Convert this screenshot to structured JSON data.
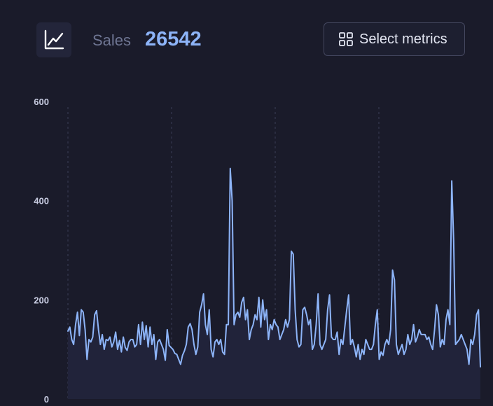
{
  "header": {
    "icon": "line-chart-icon",
    "metric_label": "Sales",
    "metric_value": "26542",
    "select_button": {
      "icon": "grid-icon",
      "label": "Select metrics"
    }
  },
  "colors": {
    "background": "#1a1b2a",
    "line": "#8db4f8",
    "area": "#21233a",
    "gridline": "#3a3d56",
    "accent": "#8db4f8"
  },
  "chart_data": {
    "type": "area",
    "title": "",
    "xlabel": "",
    "ylabel": "",
    "ylim": [
      0,
      600
    ],
    "y_ticks": [
      0,
      200,
      400,
      600
    ],
    "vertical_gridlines": 4,
    "legend": "none",
    "series": [
      {
        "values": [
          137,
          145,
          120,
          110,
          150,
          175,
          128,
          180,
          175,
          140,
          80,
          120,
          115,
          125,
          170,
          178,
          140,
          110,
          130,
          100,
          120,
          118,
          125,
          105,
          115,
          135,
          100,
          118,
          95,
          125,
          104,
          98,
          115,
          120,
          120,
          105,
          110,
          150,
          110,
          155,
          120,
          148,
          105,
          145,
          110,
          130,
          80,
          115,
          120,
          110,
          100,
          78,
          140,
          108,
          104,
          100,
          92,
          90,
          80,
          70,
          88,
          97,
          110,
          145,
          152,
          140,
          110,
          90,
          105,
          175,
          190,
          212,
          150,
          130,
          180,
          100,
          85,
          115,
          120,
          110,
          120,
          95,
          90,
          150,
          150,
          465,
          400,
          150,
          170,
          175,
          165,
          195,
          205,
          160,
          180,
          120,
          140,
          150,
          170,
          160,
          205,
          145,
          200,
          160,
          180,
          120,
          150,
          140,
          160,
          150,
          145,
          120,
          130,
          140,
          160,
          145,
          160,
          298,
          292,
          180,
          120,
          105,
          110,
          180,
          185,
          170,
          150,
          160,
          100,
          110,
          150,
          212,
          110,
          100,
          110,
          120,
          180,
          210,
          125,
          120,
          120,
          135,
          90,
          120,
          110,
          145,
          180,
          210,
          110,
          120,
          105,
          85,
          110,
          80,
          100,
          90,
          120,
          110,
          100,
          100,
          110,
          150,
          180,
          80,
          95,
          88,
          110,
          120,
          110,
          140,
          260,
          240,
          110,
          90,
          100,
          110,
          90,
          100,
          130,
          110,
          120,
          150,
          115,
          125,
          140,
          130,
          130,
          130,
          120,
          125,
          110,
          100,
          140,
          190,
          170,
          105,
          120,
          110,
          160,
          180,
          150,
          440,
          320,
          110,
          115,
          120,
          130,
          120,
          110,
          100,
          70,
          120,
          110,
          130,
          170,
          180,
          65
        ]
      }
    ]
  }
}
